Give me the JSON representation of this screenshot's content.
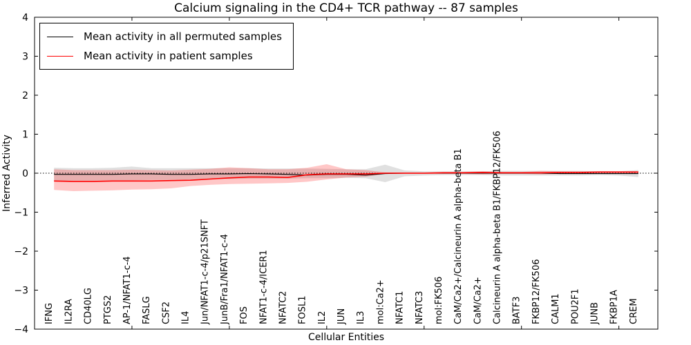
{
  "chart_data": {
    "type": "line",
    "title": "Calcium signaling in the CD4+ TCR pathway -- 87 samples",
    "xlabel": "Cellular Entities",
    "ylabel": "Inferred Activity",
    "ylim": [
      -4,
      4
    ],
    "xlim": [
      0,
      32
    ],
    "yticks": [
      4,
      3,
      2,
      1,
      0,
      -1,
      -2,
      -3,
      -4
    ],
    "ytick_labels": [
      "4",
      "3",
      "2",
      "1",
      "0",
      "−1",
      "−2",
      "−3",
      "−4"
    ],
    "xticks": [
      5,
      10,
      15,
      20,
      25,
      30
    ],
    "grid": false,
    "zero_line": true,
    "legend_position": "upper left",
    "categories": [
      "IFNG",
      "IL2RA",
      "CD40LG",
      "PTGS2",
      "AP-1/NFAT1-c-4",
      "FASLG",
      "CSF2",
      "IL4",
      "Jun/NFAT1-c-4/p21SNFT",
      "JunB/Fra1/NFAT1-c-4",
      "FOS",
      "NFAT1-c-4/ICER1",
      "NFATC2",
      "FOSL1",
      "IL2",
      "JUN",
      "IL3",
      "mol:Ca2+",
      "NFATC1",
      "NFATC3",
      "mol:FK506",
      "CaM/Ca2+/Calcineurin A alpha-beta B1",
      "CaM/Ca2+",
      "Calcineurin A alpha-beta B1/FKBP12/FK506",
      "BATF3",
      "FKBP12/FK506",
      "CALM1",
      "POU2F1",
      "JUNB",
      "FKBP1A",
      "CREM"
    ],
    "series": [
      {
        "name": "Mean activity in all permuted samples",
        "color": "#000000",
        "line_width": 1.1,
        "values": [
          -0.03,
          -0.03,
          -0.03,
          -0.03,
          -0.02,
          -0.02,
          -0.03,
          -0.03,
          -0.02,
          -0.02,
          -0.01,
          -0.02,
          -0.03,
          -0.05,
          -0.03,
          -0.03,
          -0.05,
          -0.01,
          0,
          0,
          0,
          0,
          0,
          0,
          0,
          0,
          -0.01,
          -0.01,
          -0.01,
          -0.01,
          -0.01
        ],
        "band_upper": [
          0.14,
          0.13,
          0.13,
          0.14,
          0.17,
          0.13,
          0.13,
          0.13,
          0.13,
          0.13,
          0.13,
          0.12,
          0.12,
          0.12,
          0.11,
          0.1,
          0.1,
          0.22,
          0.07,
          0.05,
          0.05,
          0.05,
          0.05,
          0.06,
          0.06,
          0.06,
          0.06,
          0.06,
          0.05,
          0.05,
          0.08
        ],
        "band_lower": [
          -0.2,
          -0.19,
          -0.19,
          -0.18,
          -0.18,
          -0.17,
          -0.17,
          -0.16,
          -0.15,
          -0.15,
          -0.14,
          -0.14,
          -0.14,
          -0.13,
          -0.13,
          -0.12,
          -0.13,
          -0.23,
          -0.08,
          -0.06,
          -0.05,
          -0.05,
          -0.05,
          -0.06,
          -0.06,
          -0.06,
          -0.06,
          -0.06,
          -0.05,
          -0.06,
          -0.1
        ],
        "band_color": "#999999",
        "band_opacity": 0.3
      },
      {
        "name": "Mean activity in patient samples",
        "color": "#ff0000",
        "line_width": 1.6,
        "values": [
          -0.2,
          -0.21,
          -0.21,
          -0.2,
          -0.2,
          -0.2,
          -0.19,
          -0.18,
          -0.15,
          -0.12,
          -0.1,
          -0.1,
          -0.11,
          -0.04,
          -0.02,
          -0.02,
          -0.02,
          0,
          0,
          0,
          0.01,
          0.01,
          0.02,
          0.01,
          0.01,
          0.01,
          0.02,
          0.02,
          0.03,
          0.03,
          0.03
        ],
        "band_upper": [
          0.1,
          0.08,
          0.08,
          0.08,
          0.09,
          0.08,
          0.07,
          0.09,
          0.11,
          0.15,
          0.13,
          0.1,
          0.1,
          0.14,
          0.23,
          0.1,
          0.08,
          0.02,
          0.02,
          0.02,
          0.03,
          0.03,
          0.05,
          0.03,
          0.03,
          0.06,
          0.05,
          0.05,
          0.05,
          0.05,
          0.05
        ],
        "band_lower": [
          -0.43,
          -0.46,
          -0.45,
          -0.44,
          -0.42,
          -0.41,
          -0.39,
          -0.33,
          -0.3,
          -0.28,
          -0.27,
          -0.26,
          -0.25,
          -0.22,
          -0.16,
          -0.11,
          -0.09,
          -0.02,
          -0.02,
          -0.02,
          -0.02,
          -0.02,
          -0.03,
          -0.02,
          -0.02,
          -0.03,
          -0.02,
          -0.02,
          -0.02,
          -0.02,
          -0.02
        ],
        "band_color": "#ff0000",
        "band_opacity": 0.22
      }
    ]
  }
}
